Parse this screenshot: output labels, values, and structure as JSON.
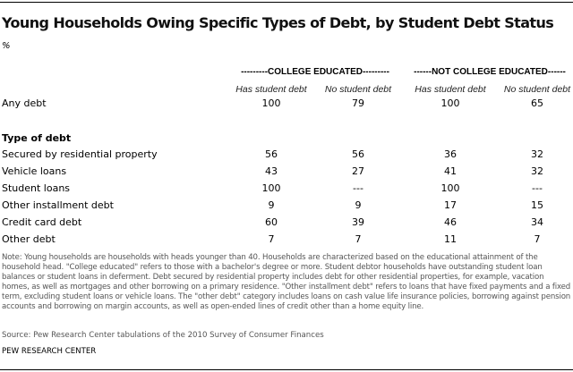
{
  "chart_data": {
    "type": "table",
    "title": "Young Households Owing Specific Types of Debt, by Student Debt Status",
    "unit": "%",
    "groups": [
      "---------COLLEGE EDUCATED---------",
      "------NOT COLLEGE EDUCATED------"
    ],
    "columns": [
      "Has student debt",
      "No student debt",
      "Has student debt",
      "No student debt"
    ],
    "top_row": {
      "label": "Any debt",
      "values": [
        "100",
        "79",
        "100",
        "65"
      ]
    },
    "section_label": "Type of debt",
    "rows": [
      {
        "label": "Secured by residential property",
        "values": [
          "56",
          "56",
          "36",
          "32"
        ]
      },
      {
        "label": "Vehicle loans",
        "values": [
          "43",
          "27",
          "41",
          "32"
        ]
      },
      {
        "label": "Student loans",
        "values": [
          "100",
          "---",
          "100",
          "---"
        ]
      },
      {
        "label": "Other installment debt",
        "values": [
          "9",
          "9",
          "17",
          "15"
        ]
      },
      {
        "label": "Credit card debt",
        "values": [
          "60",
          "39",
          "46",
          "34"
        ]
      },
      {
        "label": "Other debt",
        "values": [
          "7",
          "7",
          "11",
          "7"
        ]
      }
    ],
    "note": "Note: Young households are households with heads younger than 40. Households are characterized based on the educational attainment of the household head. \"College educated\" refers to those with a bachelor's degree or more. Student debtor households have outstanding student loan balances or student loans in deferment. Debt secured by residential property includes debt for other residential properties, for example, vacation homes, as well as mortgages and other borrowing on a primary residence. \"Other installment debt\" refers to loans that have fixed payments and a fixed term, excluding student loans or vehicle loans. The \"other debt\" category includes loans on cash value life insurance policies, borrowing against pension accounts and borrowing on margin accounts, as well as open-ended lines of credit other than a home equity line.",
    "source": "Source: Pew Research Center tabulations of the 2010 Survey of Consumer Finances",
    "org": "PEW RESEARCH CENTER"
  }
}
